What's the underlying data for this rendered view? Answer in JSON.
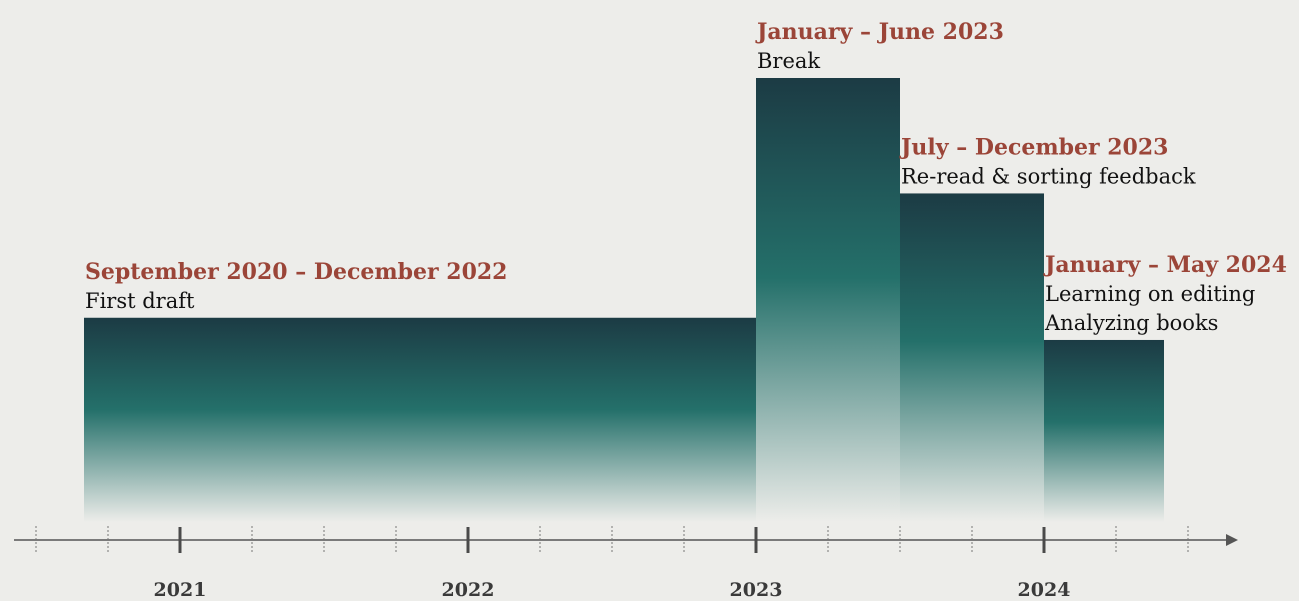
{
  "timeline": {
    "axis_range": [
      "2020-07",
      "2024-09"
    ],
    "arrow_end": true,
    "colors": {
      "background": "#ededea",
      "bar_top": "#1c3b44",
      "bar_mid": "#24706a",
      "bar_bottom": "#ededea",
      "heading": "#9b4538",
      "text": "#111111",
      "axis": "#555555"
    },
    "years": [
      {
        "label": "2021",
        "date": "2021-01"
      },
      {
        "label": "2022",
        "date": "2022-01"
      },
      {
        "label": "2023",
        "date": "2023-01"
      },
      {
        "label": "2024",
        "date": "2024-01"
      }
    ],
    "periods": [
      {
        "id": "first-draft",
        "heading": "September 2020 – December 2022",
        "lines": [
          "First draft"
        ],
        "start": "2020-09",
        "end": "2022-12",
        "level": 0.46
      },
      {
        "id": "break",
        "heading": "January – June 2023",
        "lines": [
          "Break"
        ],
        "start": "2023-01",
        "end": "2023-06",
        "level": 1.0
      },
      {
        "id": "reread",
        "heading": "July – December 2023",
        "lines": [
          "Re-read & sorting feedback"
        ],
        "start": "2023-07",
        "end": "2023-12",
        "level": 0.74
      },
      {
        "id": "learning",
        "heading": "January – May 2024",
        "lines": [
          "Learning on editing",
          "Analyzing books"
        ],
        "start": "2024-01",
        "end": "2024-05",
        "level": 0.41
      }
    ]
  }
}
